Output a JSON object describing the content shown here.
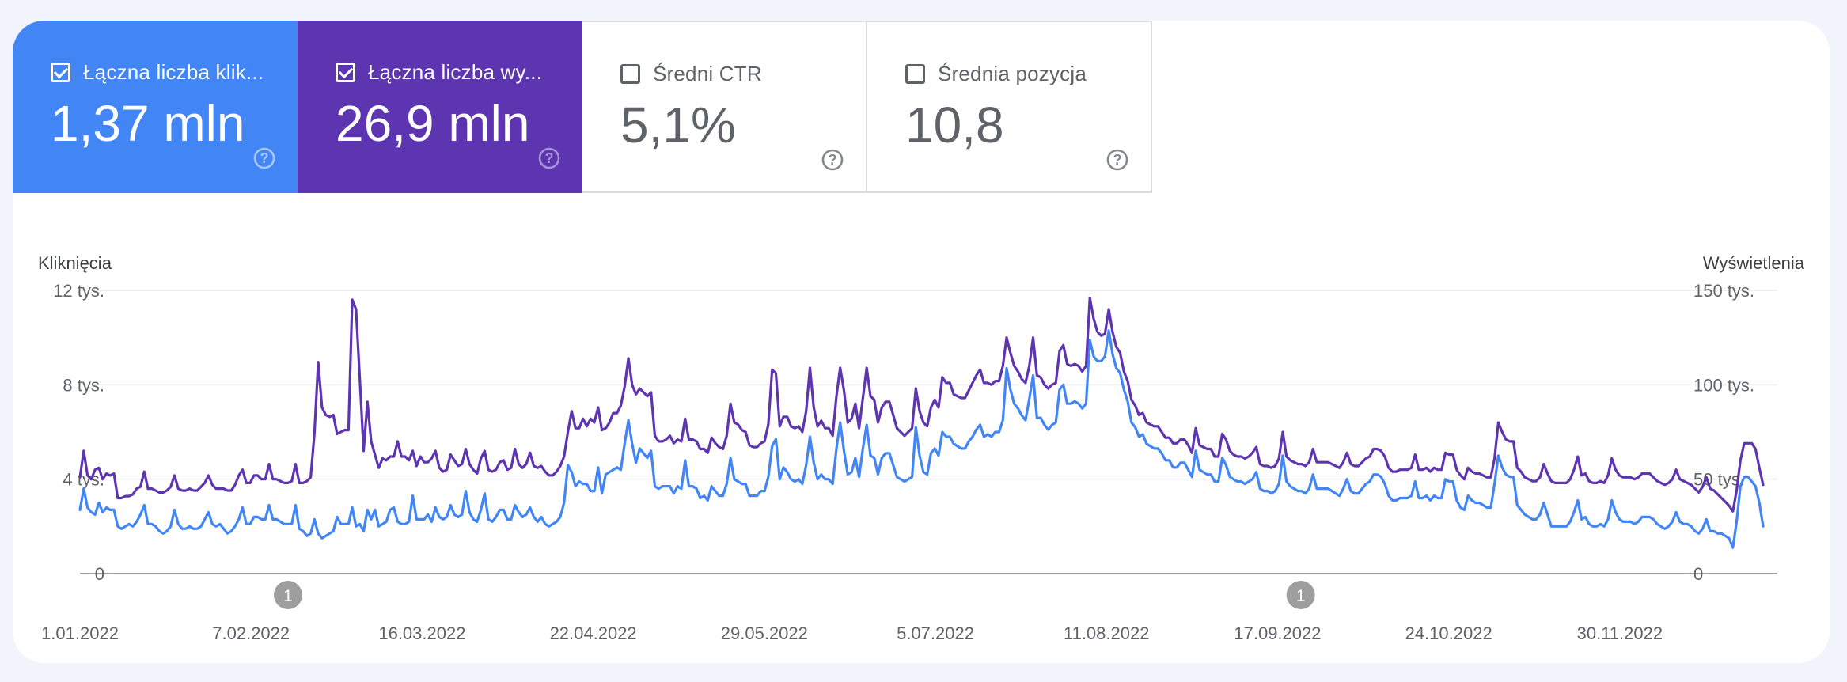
{
  "tabs": [
    {
      "label": "Łączna liczba klik...",
      "value": "1,37 mln",
      "checked": true,
      "color": "#4285f4"
    },
    {
      "label": "Łączna liczba wy...",
      "value": "26,9 mln",
      "checked": true,
      "color": "#5e35b1"
    },
    {
      "label": "Średni CTR",
      "value": "5,1%",
      "checked": false
    },
    {
      "label": "Średnia pozycja",
      "value": "10,8",
      "checked": false
    }
  ],
  "chart_data": {
    "type": "line",
    "x_range": [
      "1.01.2022",
      "31.12.2022"
    ],
    "x_tick_labels": [
      "1.01.2022",
      "7.02.2022",
      "16.03.2022",
      "22.04.2022",
      "29.05.2022",
      "5.07.2022",
      "11.08.2022",
      "17.09.2022",
      "24.10.2022",
      "30.11.2022"
    ],
    "left_axis": {
      "label": "Kliknięcia",
      "ticks": [
        "0",
        "4 tys.",
        "8 tys.",
        "12 tys."
      ],
      "range": [
        0,
        12000
      ]
    },
    "right_axis": {
      "label": "Wyświetlenia",
      "ticks": [
        "0",
        "50 tys.",
        "100 tys.",
        "150 tys."
      ],
      "range": [
        0,
        150000
      ]
    },
    "annotations": [
      {
        "date": "15.02.2022",
        "label": "1"
      },
      {
        "date": "22.09.2022",
        "label": "1"
      }
    ],
    "grid": true,
    "series": [
      {
        "axis": "left",
        "color": "#4285f4",
        "values": [
          2700,
          3600,
          2800,
          2600,
          2500,
          3000,
          2600,
          2800,
          2700,
          2700,
          2000,
          1900,
          2000,
          2100,
          2000,
          2200,
          2500,
          2900,
          2100,
          2100,
          2000,
          1800,
          1700,
          1800,
          2000,
          2700,
          2100,
          1900,
          1900,
          2000,
          1900,
          1900,
          2000,
          2300,
          2600,
          2100,
          2000,
          2100,
          1900,
          1700,
          1800,
          2000,
          2300,
          2800,
          2100,
          2100,
          2400,
          2400,
          2300,
          2300,
          2900,
          2300,
          2300,
          2200,
          2100,
          2100,
          2100,
          2900,
          1900,
          1800,
          1600,
          1700,
          2300,
          1700,
          1500,
          1600,
          1700,
          1800,
          2400,
          2100,
          2100,
          2100,
          2800,
          2000,
          2100,
          1800,
          2700,
          2300,
          2700,
          2000,
          2100,
          2200,
          2700,
          2800,
          2200,
          2100,
          2100,
          2200,
          3300,
          2300,
          2300,
          2300,
          2500,
          2200,
          2800,
          2400,
          2300,
          2400,
          2900,
          2500,
          2400,
          2500,
          3500,
          2600,
          2300,
          2200,
          2700,
          3400,
          2300,
          2200,
          2400,
          2700,
          2700,
          2300,
          2300,
          2900,
          2600,
          2400,
          2500,
          2800,
          2400,
          2200,
          2400,
          2100,
          2000,
          2100,
          2200,
          2400,
          3000,
          4600,
          4300,
          3700,
          3900,
          3800,
          3800,
          3500,
          3500,
          4500,
          3400,
          4200,
          4300,
          4400,
          4500,
          4400,
          5500,
          6500,
          5500,
          4700,
          5300,
          5100,
          4900,
          5200,
          3700,
          3600,
          3700,
          3700,
          3700,
          3400,
          3700,
          3600,
          4800,
          3700,
          3700,
          3600,
          3200,
          3300,
          3100,
          3700,
          3500,
          3300,
          3300,
          3800,
          4900,
          4000,
          3900,
          3800,
          3800,
          3300,
          3300,
          3300,
          3500,
          3500,
          4100,
          5400,
          5700,
          4000,
          4500,
          4300,
          4000,
          3900,
          4000,
          3800,
          4600,
          5800,
          4700,
          4000,
          4200,
          4000,
          4000,
          3800,
          5300,
          6400,
          5200,
          4200,
          4300,
          4900,
          4100,
          5300,
          6300,
          5000,
          4900,
          4200,
          4900,
          5100,
          5100,
          4600,
          4100,
          4000,
          3900,
          4000,
          4100,
          6200,
          5000,
          4300,
          4200,
          5100,
          5300,
          5000,
          6000,
          5800,
          5800,
          5500,
          5400,
          5300,
          5300,
          5600,
          5800,
          6100,
          6300,
          5800,
          5900,
          5800,
          6000,
          6000,
          6500,
          8700,
          7800,
          7200,
          7000,
          6700,
          6500,
          7400,
          8400,
          6600,
          6600,
          6300,
          6100,
          6300,
          6400,
          7800,
          8000,
          7200,
          7200,
          7300,
          7200,
          7000,
          7200,
          9900,
          9200,
          9000,
          9000,
          9200,
          10300,
          9300,
          8700,
          8500,
          7800,
          7300,
          6400,
          6200,
          5800,
          5900,
          5500,
          5400,
          5300,
          5300,
          5100,
          4800,
          4800,
          4500,
          4500,
          4700,
          4700,
          4400,
          4100,
          5200,
          4400,
          4300,
          4200,
          4200,
          3900,
          3900,
          4900,
          4600,
          4100,
          4000,
          3900,
          3900,
          3800,
          3900,
          4000,
          4300,
          3600,
          3500,
          3500,
          3400,
          3500,
          3800,
          5000,
          3900,
          3700,
          3600,
          3500,
          3500,
          3400,
          3600,
          4200,
          3600,
          3600,
          3600,
          3600,
          3500,
          3400,
          3300,
          3600,
          4000,
          3500,
          3400,
          3400,
          3600,
          3800,
          3900,
          4200,
          4200,
          4100,
          3800,
          3300,
          3100,
          3100,
          3200,
          3200,
          3200,
          3300,
          3900,
          3200,
          3200,
          3300,
          3100,
          3300,
          3200,
          3200,
          4000,
          3900,
          3900,
          3100,
          2800,
          2700,
          3300,
          3100,
          3000,
          3000,
          2900,
          2800,
          2800,
          3800,
          5000,
          4500,
          4200,
          4100,
          4100,
          2900,
          2700,
          2500,
          2400,
          2300,
          2300,
          2500,
          3000,
          2500,
          2000,
          2000,
          2000,
          2000,
          2000,
          2200,
          2600,
          3100,
          2300,
          2400,
          2100,
          2000,
          2000,
          2100,
          2000,
          2300,
          3100,
          2600,
          2300,
          2200,
          2200,
          2200,
          2100,
          2200,
          2400,
          2400,
          2400,
          2300,
          2100,
          2000,
          1900,
          2000,
          2200,
          2600,
          2200,
          2100,
          2100,
          2000,
          1800,
          1700,
          1900,
          2300,
          1800,
          1800,
          1700,
          1700,
          1600,
          1500,
          1100,
          2200,
          3700,
          4100,
          4100,
          3900,
          3700,
          3000,
          2000
        ]
      },
      {
        "axis": "right",
        "color": "#5e35b1",
        "values": [
          51000,
          65000,
          52000,
          50000,
          55000,
          56000,
          50000,
          53000,
          52000,
          53000,
          40000,
          40000,
          41000,
          41000,
          42000,
          45000,
          46000,
          54000,
          45000,
          45000,
          44000,
          43000,
          43000,
          44000,
          46000,
          52000,
          45000,
          44000,
          44000,
          45000,
          44000,
          44000,
          46000,
          48000,
          52000,
          47000,
          45000,
          45000,
          45000,
          44000,
          44000,
          47000,
          52000,
          55000,
          48000,
          48000,
          52000,
          52000,
          50000,
          50000,
          58000,
          50000,
          50000,
          49000,
          48000,
          48000,
          49000,
          58000,
          48000,
          48000,
          49000,
          51000,
          74000,
          112000,
          88000,
          84000,
          83000,
          84000,
          74000,
          75000,
          76000,
          76000,
          145000,
          140000,
          103000,
          65000,
          91000,
          70000,
          63000,
          56000,
          61000,
          60000,
          62000,
          62000,
          70000,
          62000,
          62000,
          60000,
          65000,
          57000,
          62000,
          59000,
          59000,
          61000,
          65000,
          56000,
          54000,
          55000,
          63000,
          60000,
          57000,
          58000,
          66000,
          58000,
          55000,
          53000,
          61000,
          65000,
          55000,
          54000,
          55000,
          59000,
          60000,
          55000,
          56000,
          66000,
          58000,
          56000,
          58000,
          64000,
          57000,
          56000,
          57000,
          54000,
          52000,
          52000,
          54000,
          57000,
          62000,
          75000,
          86000,
          77000,
          77000,
          82000,
          78000,
          82000,
          80000,
          88000,
          76000,
          77000,
          80000,
          85000,
          85000,
          89000,
          99000,
          114000,
          100000,
          95000,
          98000,
          96000,
          94000,
          96000,
          73000,
          70000,
          70000,
          71000,
          73000,
          69000,
          71000,
          70000,
          82000,
          71000,
          71000,
          70000,
          66000,
          66000,
          64000,
          72000,
          69000,
          67000,
          66000,
          73000,
          90000,
          80000,
          79000,
          76000,
          75000,
          68000,
          67000,
          67000,
          69000,
          70000,
          79000,
          108000,
          106000,
          78000,
          83000,
          83000,
          78000,
          77000,
          78000,
          75000,
          86000,
          109000,
          88000,
          78000,
          81000,
          77000,
          77000,
          73000,
          94000,
          109000,
          97000,
          80000,
          82000,
          90000,
          77000,
          93000,
          109000,
          94000,
          92000,
          80000,
          88000,
          91000,
          91000,
          84000,
          77000,
          75000,
          73000,
          75000,
          77000,
          98000,
          86000,
          80000,
          78000,
          88000,
          92000,
          88000,
          104000,
          101000,
          101000,
          95000,
          94000,
          93000,
          93000,
          97000,
          101000,
          105000,
          108000,
          101000,
          101000,
          100000,
          102000,
          102000,
          110000,
          125000,
          117000,
          110000,
          107000,
          103000,
          101000,
          110000,
          125000,
          105000,
          104000,
          100000,
          98000,
          100000,
          101000,
          118000,
          121000,
          111000,
          110000,
          111000,
          110000,
          107000,
          110000,
          146000,
          135000,
          128000,
          126000,
          127000,
          140000,
          128000,
          120000,
          117000,
          107000,
          102000,
          92000,
          89000,
          84000,
          85000,
          80000,
          79000,
          78000,
          78000,
          75000,
          72000,
          72000,
          69000,
          69000,
          71000,
          71000,
          68000,
          64000,
          77000,
          68000,
          67000,
          66000,
          66000,
          62000,
          62000,
          74000,
          71000,
          65000,
          63000,
          62000,
          62000,
          61000,
          62000,
          64000,
          67000,
          58000,
          57000,
          57000,
          56000,
          57000,
          61000,
          75000,
          62000,
          60000,
          59000,
          58000,
          58000,
          57000,
          59000,
          66000,
          59000,
          59000,
          59000,
          59000,
          58000,
          57000,
          56000,
          59000,
          64000,
          58000,
          57000,
          57000,
          59000,
          61000,
          62000,
          66000,
          66000,
          65000,
          62000,
          56000,
          54000,
          54000,
          55000,
          55000,
          55000,
          56000,
          63000,
          55000,
          55000,
          56000,
          54000,
          56000,
          55000,
          55000,
          64000,
          63000,
          63000,
          55000,
          52000,
          50000,
          56000,
          54000,
          53000,
          53000,
          52000,
          51000,
          51000,
          61000,
          80000,
          75000,
          71000,
          70000,
          70000,
          56000,
          54000,
          51000,
          50000,
          49000,
          49000,
          51000,
          58000,
          53000,
          49000,
          48000,
          48000,
          48000,
          48000,
          50000,
          55000,
          62000,
          52000,
          53000,
          49000,
          48000,
          48000,
          49000,
          48000,
          52000,
          61000,
          55000,
          52000,
          51000,
          51000,
          51000,
          50000,
          51000,
          53000,
          53000,
          53000,
          51000,
          49000,
          48000,
          47000,
          48000,
          50000,
          55000,
          50000,
          49000,
          48000,
          47000,
          45000,
          43000,
          46000,
          51000,
          45000,
          44000,
          42000,
          40000,
          38000,
          36000,
          33000,
          44000,
          60000,
          69000,
          69000,
          69000,
          66000,
          56000,
          47000
        ]
      }
    ]
  }
}
